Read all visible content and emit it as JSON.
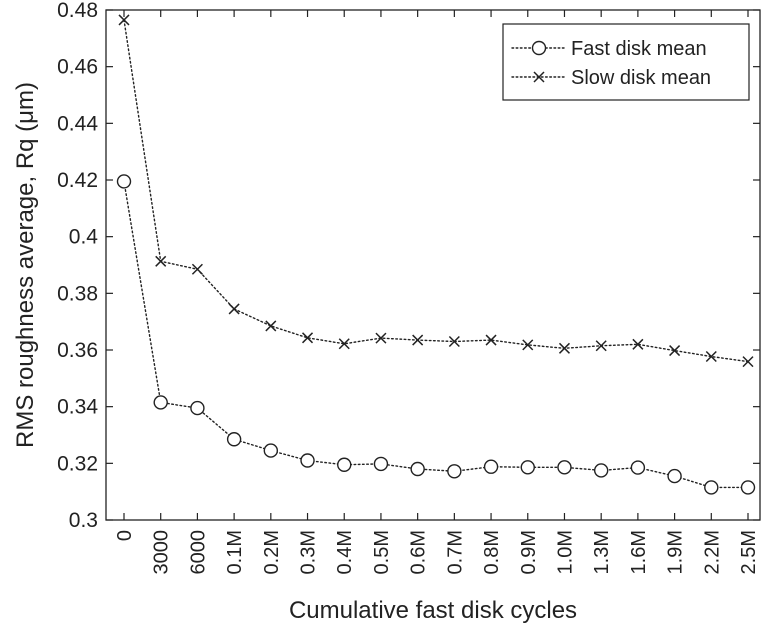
{
  "chart_data": {
    "type": "line",
    "title": "",
    "xlabel": "Cumulative fast disk cycles",
    "ylabel": "RMS roughness average, Rq (μm)",
    "ylim": [
      0.3,
      0.48
    ],
    "yticks": [
      "0.3",
      "0.32",
      "0.34",
      "0.36",
      "0.38",
      "0.4",
      "0.42",
      "0.44",
      "0.46",
      "0.48"
    ],
    "categories": [
      "0",
      "3000",
      "6000",
      "0.1M",
      "0.2M",
      "0.3M",
      "0.4M",
      "0.5M",
      "0.6M",
      "0.7M",
      "0.8M",
      "0.9M",
      "1.0M",
      "1.3M",
      "1.6M",
      "1.9M",
      "2.2M",
      "2.5M"
    ],
    "grid": false,
    "legend_position": "top-right",
    "series": [
      {
        "name": "Fast disk mean",
        "marker": "circle",
        "line_style": "dotted",
        "color": "#222222",
        "values": [
          0.4195,
          0.3415,
          0.3395,
          0.3285,
          0.3245,
          0.321,
          0.3195,
          0.3198,
          0.318,
          0.3172,
          0.3188,
          0.3186,
          0.3186,
          0.3175,
          0.3185,
          0.3155,
          0.3115,
          0.3115
        ]
      },
      {
        "name": "Slow disk mean",
        "marker": "x",
        "line_style": "dotted",
        "color": "#222222",
        "values": [
          0.4765,
          0.3913,
          0.3885,
          0.3745,
          0.3685,
          0.3643,
          0.3622,
          0.3642,
          0.3635,
          0.363,
          0.3635,
          0.3618,
          0.3606,
          0.3615,
          0.362,
          0.3598,
          0.3577,
          0.3559
        ]
      }
    ]
  }
}
